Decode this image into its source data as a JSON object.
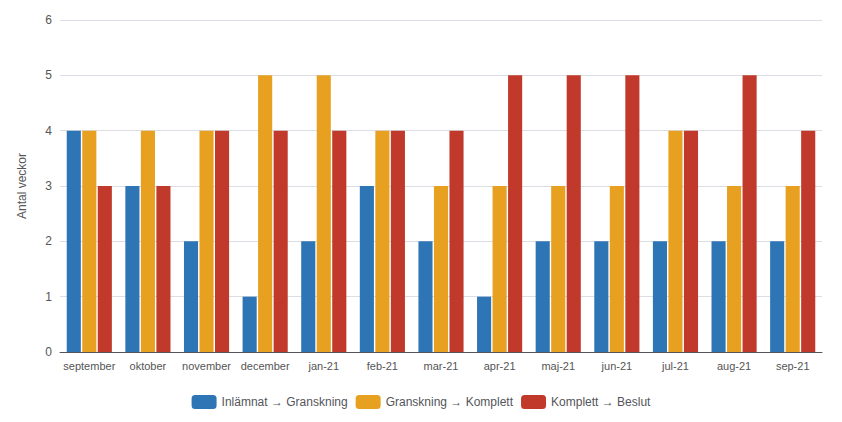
{
  "chart_data": {
    "type": "bar",
    "ylabel": "Antal veckor",
    "categories": [
      "september",
      "oktober",
      "november",
      "december",
      "jan-21",
      "feb-21",
      "mar-21",
      "apr-21",
      "maj-21",
      "jun-21",
      "jul-21",
      "aug-21",
      "sep-21"
    ],
    "series": [
      {
        "name": "Inlämnat → Granskning",
        "color": "#2e75b6",
        "values": [
          4,
          3,
          2,
          1,
          2,
          3,
          2,
          1,
          2,
          2,
          2,
          2,
          2
        ]
      },
      {
        "name": "Granskning → Komplett",
        "color": "#e8a020",
        "values": [
          4,
          4,
          4,
          5,
          5,
          4,
          3,
          3,
          3,
          3,
          4,
          3,
          3
        ]
      },
      {
        "name": "Komplett → Beslut",
        "color": "#c0392b",
        "values": [
          3,
          3,
          4,
          4,
          4,
          4,
          4,
          5,
          5,
          5,
          4,
          5,
          4
        ]
      }
    ],
    "ylim": [
      0,
      6
    ],
    "yticks": [
      0,
      1,
      2,
      3,
      4,
      5,
      6
    ],
    "grid": true,
    "legend": "bottom"
  }
}
